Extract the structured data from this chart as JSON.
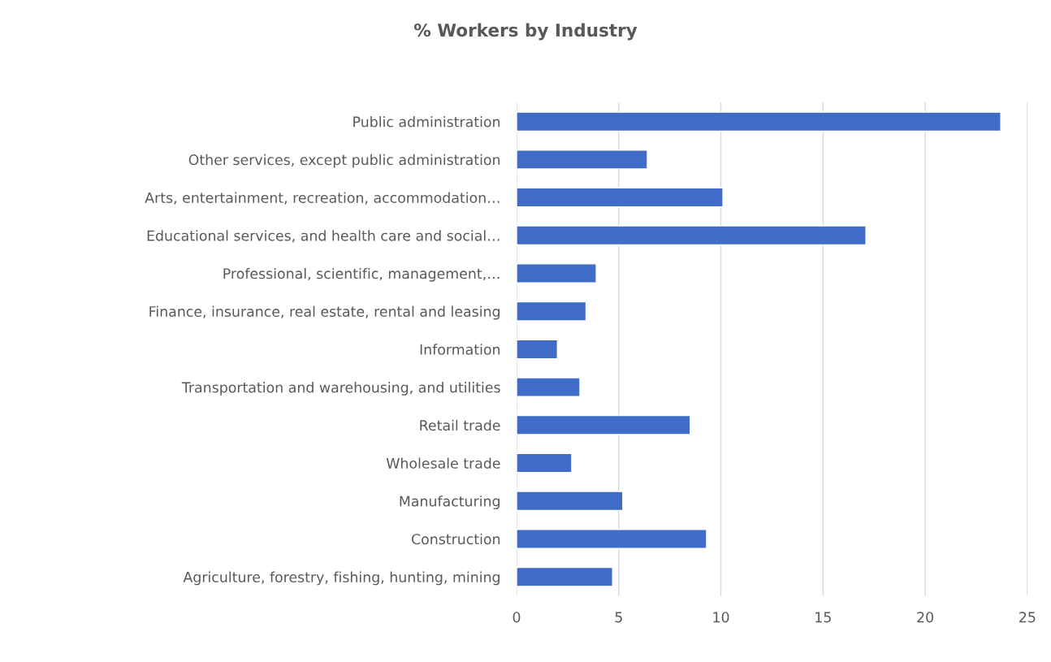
{
  "chart_data": {
    "type": "bar",
    "orientation": "horizontal",
    "title": "% Workers by Industry",
    "categories": [
      "Public administration",
      "Other services, except public administration",
      "Arts, entertainment, recreation, accommodation…",
      "Educational services, and health care and social…",
      "Professional, scientific, management,…",
      "Finance, insurance, real estate, rental and leasing",
      "Information",
      "Transportation and warehousing, and utilities",
      "Retail trade",
      "Wholesale trade",
      "Manufacturing",
      "Construction",
      "Agriculture, forestry, fishing, hunting, mining"
    ],
    "values": [
      23.7,
      6.4,
      10.1,
      17.1,
      3.9,
      3.4,
      2.0,
      3.1,
      8.5,
      2.7,
      5.2,
      9.3,
      4.7
    ],
    "color": "#3f6cc6",
    "xlim": [
      0,
      25
    ],
    "xticks": [
      0,
      5,
      10,
      15,
      20,
      25
    ],
    "grid": "x",
    "legend": false
  }
}
